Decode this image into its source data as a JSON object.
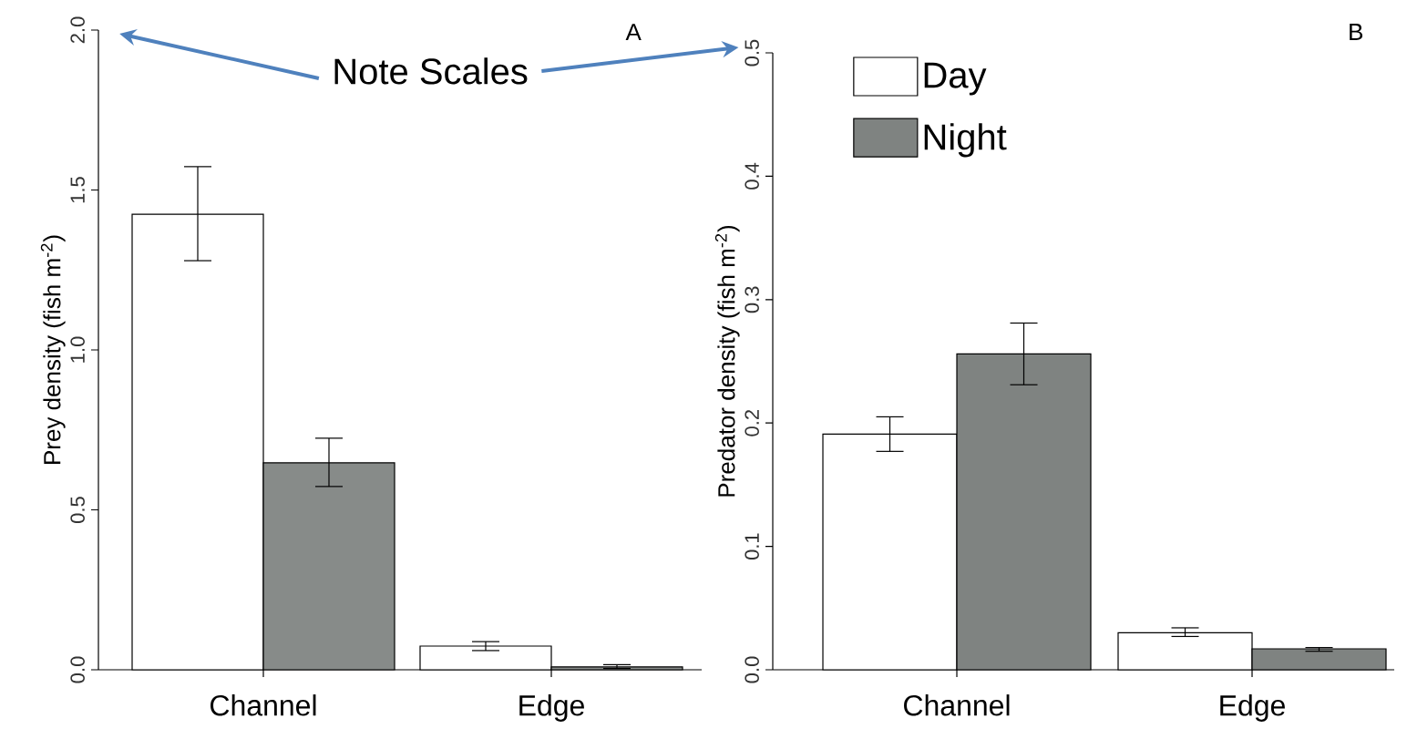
{
  "chart_data": [
    {
      "type": "bar",
      "annotations": [
        "A",
        "Note Scales"
      ],
      "ylabel": "Prey density (fish m$^{-2}$)",
      "categories": [
        "Channel",
        "Edge"
      ],
      "series": [
        {
          "color": "#ffffff",
          "values": [
            1.424,
            0.074
          ],
          "errors": [
            [
              1.279,
              1.573
            ],
            [
              0.06,
              0.088
            ]
          ]
        },
        {
          "color": "#878b89",
          "values": [
            0.647,
            0.009
          ],
          "errors": [
            [
              0.573,
              0.724
            ],
            [
              0.004,
              0.016
            ]
          ]
        }
      ],
      "ylim": [
        0,
        2.0
      ],
      "yticks": [
        {
          "value": 0,
          "label": "0.0"
        },
        {
          "value": 0.5,
          "label": "0.5"
        },
        {
          "value": 1.0,
          "label": "1.0"
        },
        {
          "value": 1.5,
          "label": "1.5"
        },
        {
          "value": 2.0,
          "label": "2.0"
        }
      ]
    },
    {
      "type": "bar",
      "annotations": [
        "B"
      ],
      "ylabel": "Predator density (fish m$^{-2}$)",
      "categories": [
        "Channel",
        "Edge"
      ],
      "series": [
        {
          "name": "Day",
          "color": "#ffffff",
          "values": [
            0.191,
            0.03
          ],
          "errors": [
            [
              0.177,
              0.205
            ],
            [
              0.027,
              0.034
            ]
          ]
        },
        {
          "name": "Night",
          "color": "#7f8381",
          "values": [
            0.256,
            0.017
          ],
          "errors": [
            [
              0.231,
              0.281
            ],
            [
              0.015,
              0.018
            ]
          ]
        }
      ],
      "ylim": [
        0,
        0.5
      ],
      "yticks": [
        {
          "value": 0,
          "label": "0.0"
        },
        {
          "value": 0.1,
          "label": "0.1"
        },
        {
          "value": 0.2,
          "label": "0.2"
        },
        {
          "value": 0.3,
          "label": "0.3"
        },
        {
          "value": 0.4,
          "label": "0.4"
        },
        {
          "value": 0.5,
          "label": "0.5"
        }
      ],
      "legend": "top left"
    }
  ]
}
